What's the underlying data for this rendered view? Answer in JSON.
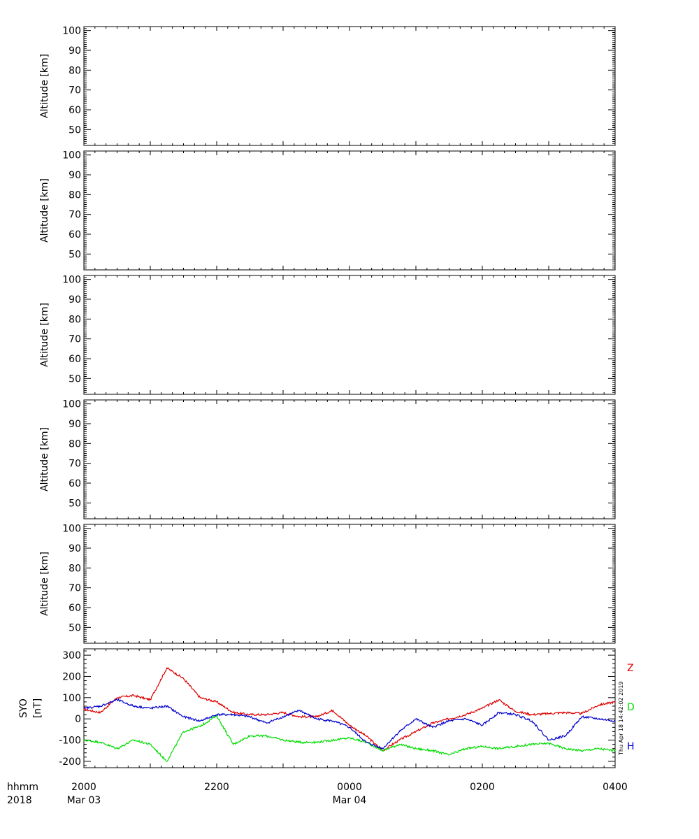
{
  "time_axis": {
    "row1_label": "hhmm",
    "row2_label": "2018",
    "ticks": [
      {
        "label": "2000",
        "date": "Mar 03"
      },
      {
        "label": "2200",
        "date": ""
      },
      {
        "label": "0000",
        "date": "Mar 04"
      },
      {
        "label": "0200",
        "date": ""
      },
      {
        "label": "0400",
        "date": ""
      }
    ]
  },
  "timestamp": "Thu Apr 18 14:42:02 2019",
  "chart_data": [
    {
      "type": "heatmap",
      "ylabel": "Altitude [km]",
      "ylim": [
        42,
        102
      ],
      "yticks": [
        50,
        60,
        70,
        80,
        90,
        100
      ],
      "xlim_hours": [
        20,
        28
      ]
    },
    {
      "type": "heatmap",
      "ylabel": "Altitude [km]",
      "ylim": [
        42,
        102
      ],
      "yticks": [
        50,
        60,
        70,
        80,
        90,
        100
      ],
      "xlim_hours": [
        20,
        28
      ]
    },
    {
      "type": "heatmap",
      "ylabel": "Altitude [km]",
      "ylim": [
        42,
        102
      ],
      "yticks": [
        50,
        60,
        70,
        80,
        90,
        100
      ],
      "xlim_hours": [
        20,
        28
      ]
    },
    {
      "type": "heatmap",
      "ylabel": "Altitude [km]",
      "ylim": [
        42,
        102
      ],
      "yticks": [
        50,
        60,
        70,
        80,
        90,
        100
      ],
      "xlim_hours": [
        20,
        28
      ]
    },
    {
      "type": "heatmap",
      "ylabel": "Altitude [km]",
      "ylim": [
        42,
        102
      ],
      "yticks": [
        50,
        60,
        70,
        80,
        90,
        100
      ],
      "xlim_hours": [
        20,
        28
      ]
    },
    {
      "type": "line",
      "ylabel_top": "SYO",
      "ylabel_bottom": "[nT]",
      "ylim": [
        -230,
        330
      ],
      "yticks": [
        -200,
        -100,
        0,
        100,
        200,
        300
      ],
      "xlim_hours": [
        20,
        28
      ],
      "x_hours": [
        20.0,
        20.25,
        20.5,
        20.75,
        21.0,
        21.25,
        21.5,
        21.75,
        22.0,
        22.25,
        22.5,
        22.75,
        23.0,
        23.25,
        23.5,
        23.75,
        24.0,
        24.25,
        24.5,
        24.75,
        25.0,
        25.25,
        25.5,
        25.75,
        26.0,
        26.25,
        26.5,
        26.75,
        27.0,
        27.25,
        27.5,
        27.75,
        28.0
      ],
      "series": [
        {
          "name": "Z",
          "color": "#dd0000",
          "values": [
            45,
            30,
            100,
            110,
            90,
            240,
            190,
            100,
            80,
            30,
            20,
            20,
            30,
            10,
            10,
            40,
            -30,
            -80,
            -150,
            -100,
            -60,
            -20,
            0,
            20,
            50,
            90,
            35,
            20,
            25,
            30,
            25,
            65,
            80
          ]
        },
        {
          "name": "D",
          "color": "#00dd00",
          "values": [
            -100,
            -110,
            -140,
            -100,
            -120,
            -200,
            -60,
            -35,
            15,
            -120,
            -80,
            -80,
            -100,
            -110,
            -110,
            -100,
            -90,
            -110,
            -150,
            -120,
            -140,
            -150,
            -170,
            -140,
            -130,
            -140,
            -130,
            -120,
            -115,
            -140,
            -150,
            -140,
            -150
          ]
        },
        {
          "name": "H",
          "color": "#0000cc",
          "values": [
            50,
            60,
            90,
            60,
            50,
            60,
            10,
            -10,
            20,
            20,
            10,
            -20,
            10,
            40,
            0,
            -10,
            -40,
            -110,
            -140,
            -60,
            0,
            -40,
            -10,
            0,
            -30,
            30,
            20,
            -10,
            -100,
            -80,
            10,
            0,
            -10
          ]
        }
      ]
    }
  ]
}
